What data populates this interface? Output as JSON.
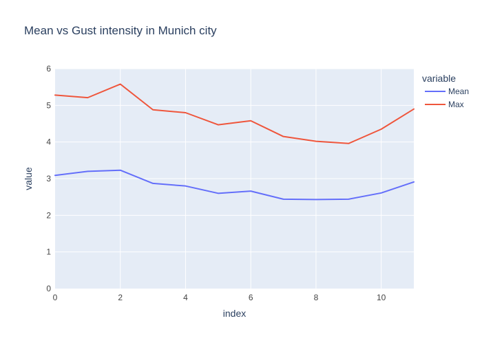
{
  "chart_data": {
    "type": "line",
    "title": "Mean vs Gust intensity in Munich city",
    "xlabel": "index",
    "ylabel": "value",
    "xlim": [
      0,
      11
    ],
    "ylim": [
      0,
      6
    ],
    "x_ticks": [
      0,
      2,
      4,
      6,
      8,
      10
    ],
    "y_ticks": [
      0,
      1,
      2,
      3,
      4,
      5,
      6
    ],
    "grid": true,
    "legend": {
      "title": "variable",
      "position": "top-right"
    },
    "x": [
      0,
      1,
      2,
      3,
      4,
      5,
      6,
      7,
      8,
      9,
      10,
      11
    ],
    "series": [
      {
        "name": "Mean",
        "color": "#636efa",
        "values": [
          3.09,
          3.2,
          3.23,
          2.87,
          2.8,
          2.6,
          2.66,
          2.44,
          2.43,
          2.44,
          2.61,
          2.91
        ]
      },
      {
        "name": "Max",
        "color": "#ef553b",
        "values": [
          5.28,
          5.21,
          5.58,
          4.88,
          4.8,
          4.47,
          4.58,
          4.15,
          4.02,
          3.96,
          4.35,
          4.9
        ]
      }
    ],
    "colors": {
      "plot_bg": "#e5ecf6",
      "grid": "#ffffff",
      "text": "#2a3f5f",
      "tick_text": "#444444"
    }
  }
}
